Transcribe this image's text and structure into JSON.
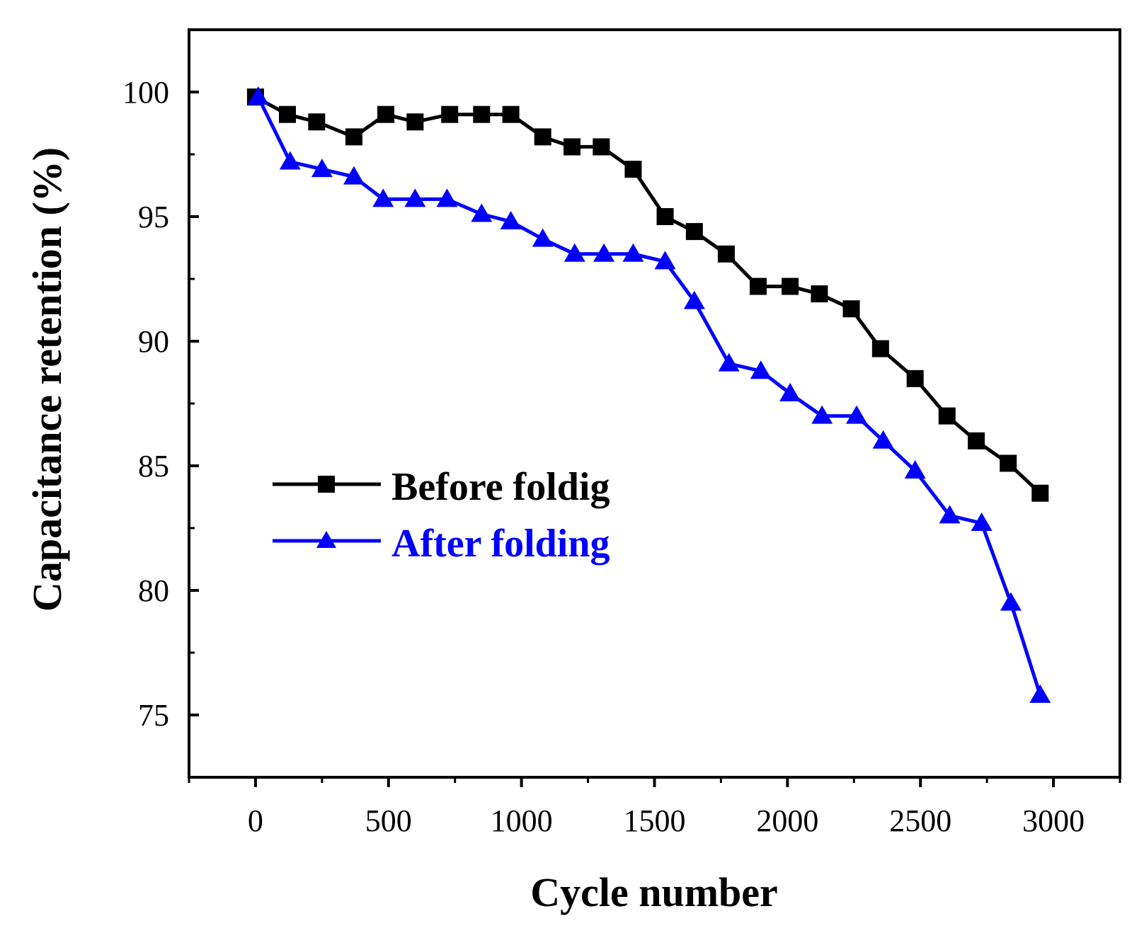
{
  "chart_data": {
    "type": "line",
    "title": "",
    "xlabel": "Cycle number",
    "ylabel": "Capacitance retention (%)",
    "xlim": [
      -250,
      3250
    ],
    "ylim": [
      72.5,
      102.5
    ],
    "xticks": [
      0,
      500,
      1000,
      1500,
      2000,
      2500,
      3000
    ],
    "yticks": [
      75,
      80,
      85,
      90,
      95,
      100
    ],
    "legend_position": "center-left",
    "grid": false,
    "series": [
      {
        "name": "Before foldig",
        "color": "#000000",
        "marker": "square",
        "x": [
          0,
          120,
          230,
          370,
          490,
          600,
          730,
          850,
          960,
          1080,
          1190,
          1300,
          1420,
          1540,
          1650,
          1770,
          1890,
          2010,
          2120,
          2240,
          2350,
          2480,
          2600,
          2710,
          2830,
          2950
        ],
        "y": [
          99.8,
          99.1,
          98.8,
          98.2,
          99.1,
          98.8,
          99.1,
          99.1,
          99.1,
          98.2,
          97.8,
          97.8,
          96.9,
          95.0,
          94.4,
          93.5,
          92.2,
          92.2,
          91.9,
          91.3,
          89.7,
          88.5,
          87.0,
          86.0,
          85.1,
          83.9
        ]
      },
      {
        "name": "After folding",
        "color": "#0000FF",
        "marker": "triangle",
        "x": [
          10,
          130,
          250,
          370,
          480,
          600,
          720,
          850,
          960,
          1080,
          1200,
          1310,
          1420,
          1540,
          1650,
          1780,
          1900,
          2010,
          2130,
          2260,
          2360,
          2480,
          2610,
          2730,
          2840,
          2950
        ],
        "y": [
          99.8,
          97.2,
          96.9,
          96.6,
          95.7,
          95.7,
          95.7,
          95.1,
          94.8,
          94.1,
          93.5,
          93.5,
          93.5,
          93.2,
          91.6,
          89.1,
          88.8,
          87.9,
          87.0,
          87.0,
          86.0,
          84.8,
          83.0,
          82.7,
          79.5,
          75.8
        ]
      }
    ]
  }
}
